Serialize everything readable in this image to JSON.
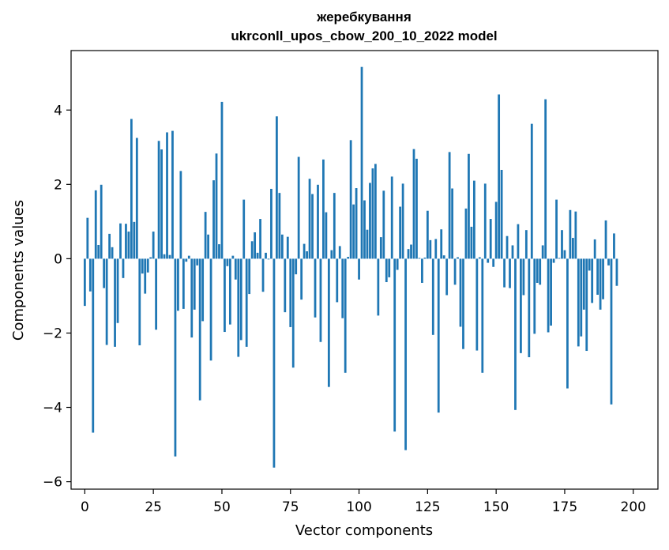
{
  "chart_data": {
    "type": "bar",
    "title": "жеребкування",
    "subtitle": "ukrconll_upos_cbow_200_10_2022 model",
    "xlabel": "Vector components",
    "ylabel": "Components values",
    "xlim": [
      -5,
      209
    ],
    "ylim": [
      -6.2,
      5.6
    ],
    "xticks": [
      0,
      25,
      50,
      75,
      100,
      125,
      150,
      175,
      200
    ],
    "yticks": [
      -6,
      -4,
      -2,
      0,
      2,
      4
    ],
    "ytick_labels": [
      "−6",
      "−4",
      "−2",
      "0",
      "2",
      "4"
    ],
    "grid": false,
    "bar_color": "#1f77b4",
    "values": [
      -1.27,
      1.1,
      -0.88,
      -4.68,
      1.84,
      0.37,
      1.99,
      -0.79,
      -2.32,
      0.67,
      0.31,
      -2.37,
      -1.73,
      0.95,
      -0.52,
      0.94,
      0.73,
      3.76,
      0.99,
      3.25,
      -2.33,
      -0.4,
      -0.94,
      -0.37,
      0.04,
      0.73,
      -1.91,
      3.17,
      2.94,
      0.12,
      3.4,
      0.1,
      3.44,
      -5.32,
      -1.4,
      2.36,
      -1.35,
      -0.08,
      0.08,
      -2.12,
      -1.37,
      -0.18,
      -3.81,
      -1.68,
      1.26,
      0.65,
      -2.74,
      2.11,
      2.83,
      0.39,
      4.22,
      -1.97,
      -0.2,
      -1.77,
      0.08,
      -0.56,
      -2.64,
      -2.19,
      1.59,
      -2.37,
      -0.95,
      0.47,
      0.71,
      0.16,
      1.07,
      -0.89,
      0.16,
      -0.02,
      1.88,
      -5.62,
      3.83,
      1.77,
      0.65,
      -1.44,
      0.59,
      -1.84,
      -2.93,
      -0.42,
      2.74,
      -1.1,
      0.4,
      0.2,
      2.15,
      1.74,
      -1.58,
      1.99,
      -2.24,
      2.67,
      1.25,
      -3.45,
      0.23,
      1.77,
      -1.17,
      0.34,
      -1.6,
      -3.07,
      0.05,
      3.19,
      1.46,
      1.9,
      -0.56,
      5.16,
      1.57,
      0.78,
      2.04,
      2.43,
      2.55,
      -1.53,
      0.58,
      1.83,
      -0.63,
      -0.5,
      2.21,
      -4.65,
      -0.3,
      1.4,
      2.02,
      -5.15,
      0.26,
      0.38,
      2.95,
      2.69,
      0.02,
      -0.65,
      0.03,
      1.29,
      0.5,
      -2.05,
      0.53,
      -4.14,
      0.79,
      0.09,
      -0.98,
      2.87,
      1.89,
      -0.7,
      0.04,
      -1.83,
      -2.43,
      1.35,
      2.82,
      0.86,
      2.1,
      -2.47,
      0.04,
      -3.07,
      2.02,
      -0.11,
      1.07,
      -0.22,
      1.53,
      4.42,
      2.39,
      -0.77,
      0.61,
      -0.79,
      0.36,
      -4.07,
      0.93,
      -2.54,
      -0.98,
      0.77,
      -2.65,
      3.63,
      -2.02,
      -0.65,
      -0.7,
      0.36,
      4.29,
      -1.98,
      -1.8,
      -0.11,
      1.59,
      0.02,
      0.77,
      0.23,
      -3.49,
      1.31,
      0.56,
      1.27,
      -2.36,
      -2.09,
      -1.37,
      -2.48,
      -0.32,
      -1.19,
      0.52,
      -0.97,
      -1.37,
      -1.09,
      1.03,
      -0.18,
      -3.92,
      0.68,
      -0.73
    ]
  }
}
